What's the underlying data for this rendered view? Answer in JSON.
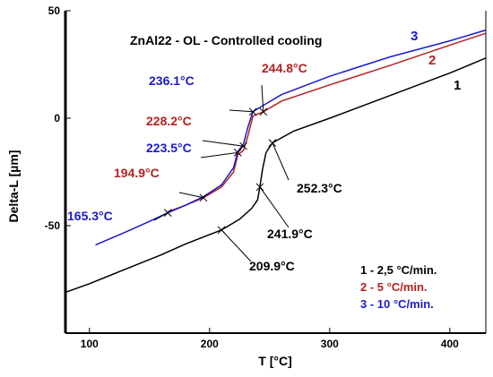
{
  "chart_data": {
    "type": "line",
    "title": "ZnAl22 - OL - Controlled cooling",
    "xlabel": "T [°C]",
    "ylabel": "Delta-L [µm]",
    "xlim": [
      80,
      430
    ],
    "ylim": [
      -100,
      50
    ],
    "x_ticks": [
      100,
      200,
      300,
      400
    ],
    "y_ticks": [
      50,
      0,
      -50
    ],
    "grid": false,
    "legend_position": "bottom-right",
    "series": [
      {
        "name": "1 - 2,5 °C/min.",
        "label": "1",
        "color": "#000000",
        "points": [
          [
            80,
            -81
          ],
          [
            100,
            -77
          ],
          [
            120,
            -72.5
          ],
          [
            140,
            -68
          ],
          [
            160,
            -63.5
          ],
          [
            180,
            -58.5
          ],
          [
            209.9,
            -52
          ],
          [
            225,
            -47
          ],
          [
            235,
            -42
          ],
          [
            240,
            -38
          ],
          [
            241.9,
            -32
          ],
          [
            244,
            -24
          ],
          [
            247,
            -16
          ],
          [
            252.3,
            -11.5
          ],
          [
            270,
            -6
          ],
          [
            300,
            0
          ],
          [
            350,
            10.5
          ],
          [
            400,
            21
          ],
          [
            430,
            28
          ]
        ]
      },
      {
        "name": "2 - 5 °C/min.",
        "label": "2",
        "color": "#b22222",
        "points": [
          [
            165.3,
            -43.5
          ],
          [
            180,
            -40.5
          ],
          [
            194.9,
            -37
          ],
          [
            210,
            -32
          ],
          [
            220,
            -25
          ],
          [
            223.5,
            -17
          ],
          [
            228.2,
            -15
          ],
          [
            232,
            -8
          ],
          [
            236.1,
            1
          ],
          [
            244.8,
            3
          ],
          [
            260,
            8
          ],
          [
            300,
            15.5
          ],
          [
            350,
            24.5
          ],
          [
            400,
            34
          ],
          [
            430,
            39.5
          ]
        ]
      },
      {
        "name": "3 - 10 °C/min.",
        "label": "3",
        "color": "#1a1acc",
        "points": [
          [
            105,
            -59
          ],
          [
            130,
            -53
          ],
          [
            150,
            -48
          ],
          [
            165.3,
            -44
          ],
          [
            180,
            -40.5
          ],
          [
            194.9,
            -36.5
          ],
          [
            210,
            -31
          ],
          [
            220,
            -23
          ],
          [
            223.5,
            -15.5
          ],
          [
            228.2,
            -12
          ],
          [
            232,
            -4
          ],
          [
            236.1,
            3
          ],
          [
            244.8,
            6
          ],
          [
            260,
            11
          ],
          [
            300,
            19.5
          ],
          [
            350,
            28.5
          ],
          [
            400,
            36
          ],
          [
            430,
            41
          ]
        ]
      }
    ],
    "annotations": [
      {
        "text": "236.1°C",
        "color": "#1a1acc",
        "x": 236.1,
        "y": 3
      },
      {
        "text": "244.8°C",
        "color": "#b22222",
        "x": 244.8,
        "y": 3
      },
      {
        "text": "228.2°C",
        "color": "#b22222",
        "x": 228.2,
        "y": -13
      },
      {
        "text": "223.5°C",
        "color": "#1a1acc",
        "x": 223.5,
        "y": -16
      },
      {
        "text": "194.9°C",
        "color": "#b22222",
        "x": 194.9,
        "y": -37
      },
      {
        "text": "165.3°C",
        "color": "#1a1acc",
        "x": 165.3,
        "y": -44
      },
      {
        "text": "252.3°C",
        "color": "#000000",
        "x": 252.3,
        "y": -11.5
      },
      {
        "text": "241.9°C",
        "color": "#000000",
        "x": 241.9,
        "y": -32
      },
      {
        "text": "209.9°C",
        "color": "#000000",
        "x": 209.9,
        "y": -52
      }
    ]
  }
}
